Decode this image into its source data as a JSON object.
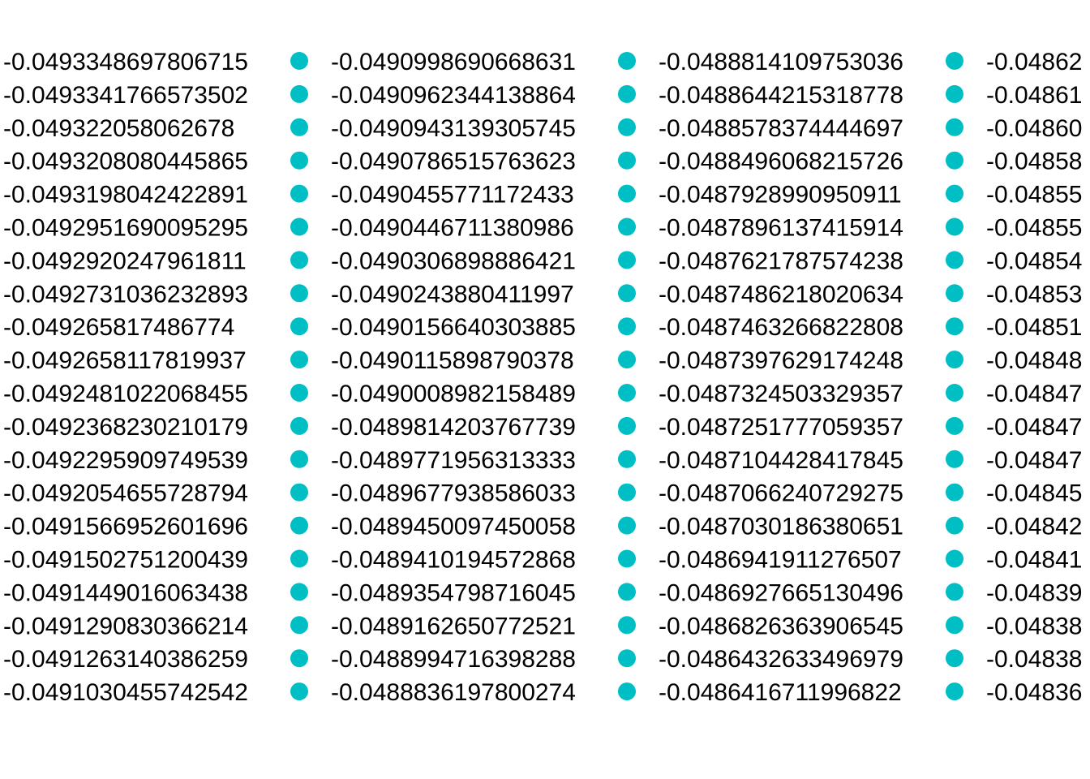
{
  "chart_data": {
    "type": "scatter",
    "legend": {
      "placement": "full-page",
      "marker_color": "#00BFC4",
      "columns": [
        {
          "entries": [
            "-0.0493348697806715",
            "-0.0493341766573502",
            "-0.049322058062678",
            "-0.0493208080445865",
            "-0.0493198042422891",
            "-0.0492951690095295",
            "-0.0492920247961811",
            "-0.0492731036232893",
            "-0.049265817486774",
            "-0.0492658117819937",
            "-0.0492481022068455",
            "-0.0492368230210179",
            "-0.0492295909749539",
            "-0.0492054655728794",
            "-0.0491566952601696",
            "-0.0491502751200439",
            "-0.0491449016063438",
            "-0.0491290830366214",
            "-0.0491263140386259",
            "-0.0491030455742542"
          ]
        },
        {
          "entries": [
            "-0.0490998690668631",
            "-0.0490962344138864",
            "-0.0490943139305745",
            "-0.0490786515763623",
            "-0.0490455771172433",
            "-0.0490446711380986",
            "-0.0490306898886421",
            "-0.0490243880411997",
            "-0.0490156640303885",
            "-0.0490115898790378",
            "-0.0490008982158489",
            "-0.0489814203767739",
            "-0.0489771956313333",
            "-0.0489677938586033",
            "-0.0489450097450058",
            "-0.0489410194572868",
            "-0.0489354798716045",
            "-0.0489162650772521",
            "-0.0488994716398288",
            "-0.0488836197800274"
          ]
        },
        {
          "entries": [
            "-0.0488814109753036",
            "-0.0488644215318778",
            "-0.0488578374444697",
            "-0.0488496068215726",
            "-0.0487928990950911",
            "-0.0487896137415914",
            "-0.0487621787574238",
            "-0.0487486218020634",
            "-0.0487463266822808",
            "-0.0487397629174248",
            "-0.0487324503329357",
            "-0.0487251777059357",
            "-0.0487104428417845",
            "-0.0487066240729275",
            "-0.0487030186380651",
            "-0.0486941911276507",
            "-0.0486927665130496",
            "-0.0486826363906545",
            "-0.0486432633496979",
            "-0.0486416711996822"
          ]
        },
        {
          "entries": [
            "-0.04862",
            "-0.04861",
            "-0.04860",
            "-0.04858",
            "-0.04855",
            "-0.04855",
            "-0.04854",
            "-0.04853",
            "-0.04851",
            "-0.04848",
            "-0.04847",
            "-0.04847",
            "-0.04847",
            "-0.04845",
            "-0.04842",
            "-0.04841",
            "-0.04839",
            "-0.04838",
            "-0.04838",
            "-0.04836"
          ]
        }
      ]
    }
  }
}
